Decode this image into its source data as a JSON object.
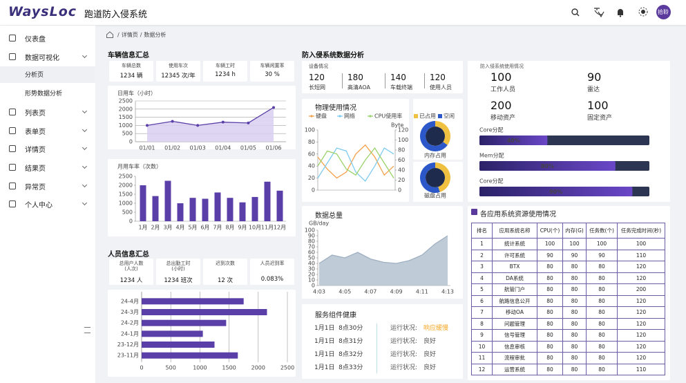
{
  "header": {
    "logo": "WaysLoc",
    "title": "跑道防入侵系统",
    "avatar": "拾聆"
  },
  "menu": [
    {
      "label": "仪表盘"
    },
    {
      "label": "数据可视化",
      "children": [
        "分析页",
        "形势数据分析"
      ]
    },
    {
      "label": "列表页"
    },
    {
      "label": "表单页"
    },
    {
      "label": "详情页"
    },
    {
      "label": "结果页"
    },
    {
      "label": "异常页"
    },
    {
      "label": "个人中心"
    }
  ],
  "breadcrumb": {
    "separator": "/",
    "items": [
      "详情页",
      "数据分析"
    ]
  },
  "vehicle": {
    "title": "车辆信息汇总",
    "stats": [
      {
        "label": "车辆总数",
        "value": "1234 辆"
      },
      {
        "label": "使用车次",
        "value": "12345 次/年"
      },
      {
        "label": "车辆工时",
        "value": "1234 h"
      },
      {
        "label": "车辆闲置率",
        "value": "30 %"
      }
    ]
  },
  "personnel": {
    "title": "人员信息汇总",
    "stats": [
      {
        "label": "总用户人数\n(人次)",
        "value": "1234 人"
      },
      {
        "label": "总出勤工时\n(小时)",
        "value": "1234 班次"
      },
      {
        "label": "迟到次数",
        "value": "12 次"
      },
      {
        "label": "人员迟到率",
        "value": "0.083%"
      }
    ]
  },
  "intrusion": {
    "title": "防入侵系统数据分析",
    "devices": {
      "title": "设备情况",
      "items": [
        {
          "value": 120,
          "label": "长短网"
        },
        {
          "value": 180,
          "label": "高清AOA"
        },
        {
          "value": 140,
          "label": "车载终端"
        },
        {
          "value": 120,
          "label": "使用人员"
        }
      ]
    },
    "physical_title": "物理使用情况",
    "volume_title": "数据总量",
    "health": {
      "title": "服务组件健康",
      "rows": [
        {
          "time": "1月1日  8点30分",
          "status_label": "运行状况:",
          "status": "响应缓慢",
          "color": "#f5a623"
        },
        {
          "time": "1月1日  8点31分",
          "status_label": "运行状况:",
          "status": "良好",
          "color": "#555555"
        },
        {
          "time": "1月1日  8点32分",
          "status_label": "运行状况:",
          "status": "良好",
          "color": "#555555"
        },
        {
          "time": "1月1日  8点33分",
          "status_label": "运行状况:",
          "status": "良好",
          "color": "#555555"
        }
      ]
    }
  },
  "usage": {
    "title": "防入侵系统使用情况",
    "stats": [
      {
        "value": 100,
        "label": "工作人员"
      },
      {
        "value": 90,
        "label": "雷达"
      },
      {
        "value": 200,
        "label": "移动资产"
      },
      {
        "value": 100,
        "label": "固定资产"
      }
    ]
  },
  "resources": {
    "title": "各应用系统资源使用情况",
    "columns": [
      "排名",
      "应用系统名称",
      "CPU(个)",
      "内存(G)",
      "任务数(个)",
      "任务完成时间(秒)"
    ],
    "rows": [
      [
        1,
        "统计系统",
        100,
        100,
        100,
        100
      ],
      [
        2,
        "许可系统",
        90,
        90,
        90,
        110
      ],
      [
        3,
        "BTX",
        80,
        80,
        80,
        120
      ],
      [
        4,
        "DA系统",
        80,
        80,
        80,
        120
      ],
      [
        5,
        "航管门户",
        80,
        80,
        80,
        200
      ],
      [
        6,
        "航路信息公开",
        80,
        80,
        80,
        120
      ],
      [
        7,
        "移动OA",
        80,
        80,
        80,
        120
      ],
      [
        8,
        "问题管理",
        80,
        80,
        80,
        120
      ],
      [
        9,
        "信号管理",
        80,
        80,
        80,
        120
      ],
      [
        10,
        "信息审核",
        80,
        80,
        80,
        120
      ],
      [
        11,
        "流程审批",
        80,
        80,
        80,
        120
      ],
      [
        12,
        "运营系统",
        80,
        80,
        80,
        110
      ]
    ]
  },
  "chart_data": [
    {
      "type": "line",
      "ylabel": "日用车（小时）",
      "categories": [
        "01/01",
        "01/02",
        "01/03",
        "01/04",
        "01/05",
        "01/06"
      ],
      "values": [
        1000,
        1250,
        1000,
        1200,
        1150,
        2100
      ],
      "color": "#5b3fa8",
      "fill": "#d8cff0",
      "markers": true,
      "ylim": [
        0,
        2500
      ],
      "yticks": [
        0,
        500,
        1000,
        1500,
        2000,
        2500
      ],
      "grid": true
    },
    {
      "type": "bar",
      "ylabel": "月用车率（次数）",
      "categories": [
        "1月",
        "2月",
        "3月",
        "4月",
        "5月",
        "6月",
        "7月",
        "8月",
        "9月",
        "10月",
        "11月",
        "12月"
      ],
      "values": [
        2000,
        1400,
        2250,
        1000,
        1300,
        1250,
        1600,
        1300,
        1050,
        1350,
        2200,
        1700
      ],
      "color": "#5b3fa8",
      "ylim": [
        0,
        2500
      ],
      "yticks": [
        0,
        500,
        1000,
        1500,
        2000,
        2500
      ],
      "grid": false
    },
    {
      "type": "bar",
      "horizontal": true,
      "categories": [
        "24-4月",
        "24-3月",
        "24-2月",
        "24-1月",
        "23-12月",
        "23-11月"
      ],
      "values": [
        1750,
        2150,
        1450,
        1050,
        1250,
        1650
      ],
      "color": "#5b3fa8",
      "xlim": [
        0,
        2500
      ],
      "xticks": [
        0,
        500,
        1000,
        1500,
        2000,
        2500
      ],
      "grid": true
    },
    {
      "type": "line",
      "series": [
        {
          "name": "硬盘",
          "color": "#f5a04a",
          "values": [
            55,
            35,
            20,
            30,
            60,
            75,
            55,
            25,
            40
          ]
        },
        {
          "name": "网络",
          "color": "#7ecbf0",
          "values": [
            20,
            45,
            70,
            65,
            30,
            15,
            40,
            70,
            60
          ]
        },
        {
          "name": "CPU使用率",
          "color": "#9ad26a",
          "values": [
            40,
            65,
            60,
            35,
            25,
            50,
            70,
            45,
            20
          ]
        }
      ],
      "ylim": [
        0,
        100
      ],
      "yticks": [
        0,
        20,
        40,
        60,
        80,
        100
      ],
      "y2label": "Byte",
      "y2lim": [
        0,
        120
      ],
      "y2ticks": [
        0,
        20,
        40,
        60,
        80,
        100,
        120
      ],
      "grid": false
    },
    {
      "type": "pie",
      "categories": [
        "已占用",
        "空闲"
      ],
      "colors": [
        "#f0c040",
        "#2b57c9"
      ],
      "series": [
        {
          "name": "内存占用",
          "values": [
            35,
            65
          ]
        },
        {
          "name": "磁盘占用",
          "values": [
            45,
            55
          ]
        }
      ]
    },
    {
      "type": "line",
      "ylabel": "GB/day",
      "categories": [
        "4:03",
        null,
        "4:05",
        null,
        "4:07",
        null,
        "4:09",
        null,
        "4:11",
        null,
        "4:13"
      ],
      "values": [
        40,
        55,
        50,
        60,
        48,
        42,
        40,
        45,
        55,
        75,
        90
      ],
      "color": "#9fb0c2",
      "fill": "#b4c2d0",
      "markers": false,
      "ylim": [
        0,
        100
      ],
      "yticks": [
        0,
        10,
        20,
        30,
        40,
        50,
        60,
        70,
        80,
        90,
        100
      ],
      "grid": false
    },
    {
      "type": "progress",
      "categories": [
        "Core分配",
        "Mem分配",
        "Core分配"
      ],
      "values": [
        40,
        80,
        90
      ],
      "value_labels": [
        "40%",
        "80%",
        "90%"
      ],
      "xlim": [
        0,
        100
      ]
    }
  ]
}
